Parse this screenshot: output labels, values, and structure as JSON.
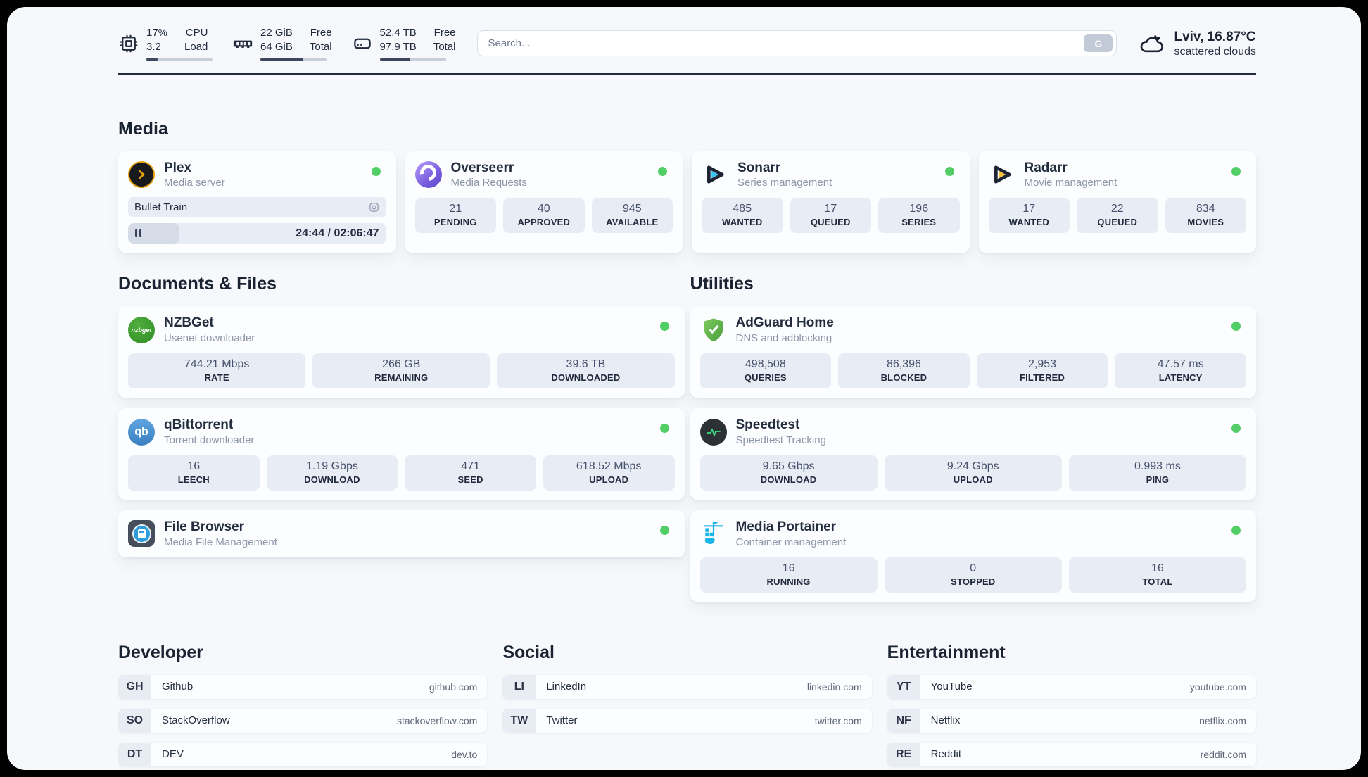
{
  "topbar": {
    "resources": [
      {
        "icon": "cpu-icon",
        "v1": "17%",
        "v2": "3.2",
        "l1": "CPU",
        "l2": "Load",
        "pct": 17
      },
      {
        "icon": "ram-icon",
        "v1": "22 GiB",
        "v2": "64 GiB",
        "l1": "Free",
        "l2": "Total",
        "pct": 65
      },
      {
        "icon": "disk-icon",
        "v1": "52.4 TB",
        "v2": "97.9 TB",
        "l1": "Free",
        "l2": "Total",
        "pct": 46
      }
    ],
    "search": {
      "placeholder": "Search...",
      "button": "G"
    },
    "weather": {
      "icon": "cloud-icon",
      "location": "Lviv, 16.87°C",
      "condition": "scattered clouds"
    }
  },
  "sections": {
    "media": "Media",
    "documents": "Documents & Files",
    "utilities": "Utilities",
    "developer": "Developer",
    "social": "Social",
    "entertainment": "Entertainment"
  },
  "apps": {
    "plex": {
      "name": "Plex",
      "desc": "Media server",
      "status": "online",
      "now_playing": "Bullet Train",
      "time": "24:44 / 02:06:47",
      "progress_pct": 20
    },
    "overseerr": {
      "name": "Overseerr",
      "desc": "Media Requests",
      "status": "online",
      "stats": [
        {
          "value": "21",
          "label": "PENDING"
        },
        {
          "value": "40",
          "label": "APPROVED"
        },
        {
          "value": "945",
          "label": "AVAILABLE"
        }
      ]
    },
    "sonarr": {
      "name": "Sonarr",
      "desc": "Series management",
      "status": "online",
      "stats": [
        {
          "value": "485",
          "label": "WANTED"
        },
        {
          "value": "17",
          "label": "QUEUED"
        },
        {
          "value": "196",
          "label": "SERIES"
        }
      ]
    },
    "radarr": {
      "name": "Radarr",
      "desc": "Movie management",
      "status": "online",
      "stats": [
        {
          "value": "17",
          "label": "WANTED"
        },
        {
          "value": "22",
          "label": "QUEUED"
        },
        {
          "value": "834",
          "label": "MOVIES"
        }
      ]
    },
    "nzbget": {
      "name": "NZBGet",
      "desc": "Usenet downloader",
      "status": "online",
      "stats": [
        {
          "value": "744.21 Mbps",
          "label": "RATE"
        },
        {
          "value": "266 GB",
          "label": "REMAINING"
        },
        {
          "value": "39.6 TB",
          "label": "DOWNLOADED"
        }
      ]
    },
    "qbittorrent": {
      "name": "qBittorrent",
      "desc": "Torrent downloader",
      "status": "online",
      "stats": [
        {
          "value": "16",
          "label": "LEECH"
        },
        {
          "value": "1.19 Gbps",
          "label": "DOWNLOAD"
        },
        {
          "value": "471",
          "label": "SEED"
        },
        {
          "value": "618.52 Mbps",
          "label": "UPLOAD"
        }
      ]
    },
    "filebrowser": {
      "name": "File Browser",
      "desc": "Media File Management",
      "status": "online"
    },
    "adguard": {
      "name": "AdGuard Home",
      "desc": "DNS and adblocking",
      "status": "online",
      "stats": [
        {
          "value": "498,508",
          "label": "QUERIES"
        },
        {
          "value": "86,396",
          "label": "BLOCKED"
        },
        {
          "value": "2,953",
          "label": "FILTERED"
        },
        {
          "value": "47.57 ms",
          "label": "LATENCY"
        }
      ]
    },
    "speedtest": {
      "name": "Speedtest",
      "desc": "Speedtest Tracking",
      "status": "online",
      "stats": [
        {
          "value": "9.65 Gbps",
          "label": "DOWNLOAD"
        },
        {
          "value": "9.24 Gbps",
          "label": "UPLOAD"
        },
        {
          "value": "0.993 ms",
          "label": "PING"
        }
      ]
    },
    "portainer": {
      "name": "Media Portainer",
      "desc": "Container management",
      "status": "online",
      "stats": [
        {
          "value": "16",
          "label": "RUNNING"
        },
        {
          "value": "0",
          "label": "STOPPED"
        },
        {
          "value": "16",
          "label": "TOTAL"
        }
      ]
    }
  },
  "bookmarks": {
    "developer": [
      {
        "abbr": "GH",
        "name": "Github",
        "url": "github.com"
      },
      {
        "abbr": "SO",
        "name": "StackOverflow",
        "url": "stackoverflow.com"
      },
      {
        "abbr": "DT",
        "name": "DEV",
        "url": "dev.to"
      }
    ],
    "social": [
      {
        "abbr": "LI",
        "name": "LinkedIn",
        "url": "linkedin.com"
      },
      {
        "abbr": "TW",
        "name": "Twitter",
        "url": "twitter.com"
      }
    ],
    "entertainment": [
      {
        "abbr": "YT",
        "name": "YouTube",
        "url": "youtube.com"
      },
      {
        "abbr": "NF",
        "name": "Netflix",
        "url": "netflix.com"
      },
      {
        "abbr": "RE",
        "name": "Reddit",
        "url": "reddit.com"
      }
    ]
  },
  "icon_labels": {
    "nzbget": "nzbget",
    "qbittorrent": "qb"
  },
  "colors": {
    "status_online": "#51cf66",
    "plex_accent": "#e5a00d",
    "sonarr_accent": "#35c5f4",
    "radarr_accent": "#ffc230",
    "nzbget_green": "#3d9c2f",
    "qbittorrent_blue": "#4687c3",
    "adguard_green": "#68b54e",
    "speedtest_green": "#3ddc84",
    "portainer_blue": "#1ab4e6"
  }
}
